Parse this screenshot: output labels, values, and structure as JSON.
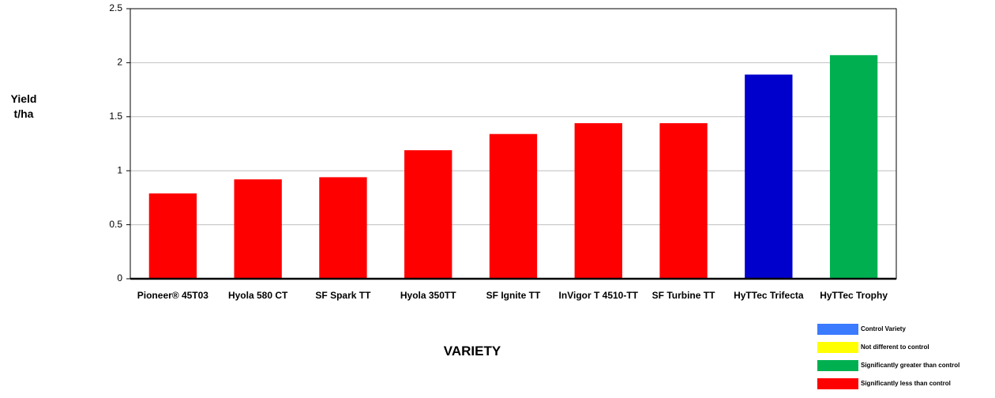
{
  "chart_data": {
    "type": "bar",
    "ylabel": "Yield t/ha",
    "xlabel": "VARIETY",
    "categories": [
      "Pioneer® 45T03",
      "Hyola 580 CT",
      "SF Spark TT",
      "Hyola 350TT",
      "SF Ignite TT",
      "InVigor T 4510-TT",
      "SF Turbine TT",
      "HyTTec Trifecta",
      "HyTTec Trophy"
    ],
    "values": [
      0.79,
      0.92,
      0.94,
      1.19,
      1.34,
      1.44,
      1.44,
      1.89,
      2.07
    ],
    "colors": [
      "#ff0000",
      "#ff0000",
      "#ff0000",
      "#ff0000",
      "#ff0000",
      "#ff0000",
      "#ff0000",
      "#0000cc",
      "#00b050"
    ],
    "ylim": [
      0,
      2.5
    ],
    "yticks": [
      0,
      0.5,
      1,
      1.5,
      2,
      2.5
    ],
    "grid": true,
    "legend": [
      {
        "label": "Control Variety",
        "color": "#3a7bff"
      },
      {
        "label": "Not different to control",
        "color": "#ffff00"
      },
      {
        "label": "Significantly greater than control",
        "color": "#00b050"
      },
      {
        "label": "Significantly less than control",
        "color": "#ff0000"
      }
    ]
  }
}
